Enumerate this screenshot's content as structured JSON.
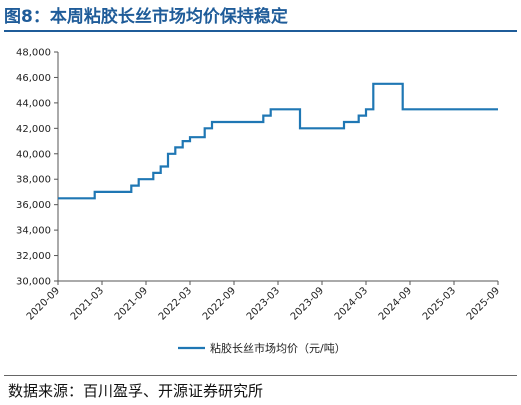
{
  "title": "图8：本周粘胶长丝市场均价保持稳定",
  "source": "数据来源：百川盈孚、开源证券研究所",
  "chart_data": {
    "type": "line",
    "title": "图8：本周粘胶长丝市场均价保持稳定",
    "xlabel": "",
    "ylabel": "",
    "xlim": [
      "2020-09",
      "2025-09"
    ],
    "ylim": [
      30000,
      48000
    ],
    "y_ticks": [
      30000,
      32000,
      34000,
      36000,
      38000,
      40000,
      42000,
      44000,
      46000,
      48000
    ],
    "y_tick_labels": [
      "30,000",
      "32,000",
      "34,000",
      "36,000",
      "38,000",
      "40,000",
      "42,000",
      "44,000",
      "46,000",
      "48,000"
    ],
    "x_tick_labels": [
      "2020-09",
      "2021-03",
      "2021-09",
      "2022-03",
      "2022-09",
      "2023-03",
      "2023-09",
      "2024-03",
      "2024-09",
      "2025-03",
      "2025-09"
    ],
    "grid": false,
    "legend_position": "bottom",
    "color": "#1f77b4",
    "series": [
      {
        "name": "粘胶长丝市场均价（元/吨）",
        "step": true,
        "points": [
          [
            "2020-09",
            36500
          ],
          [
            "2021-02",
            37000
          ],
          [
            "2021-07",
            37500
          ],
          [
            "2021-08",
            38000
          ],
          [
            "2021-10",
            38500
          ],
          [
            "2021-11",
            39000
          ],
          [
            "2021-12",
            40000
          ],
          [
            "2022-01",
            40500
          ],
          [
            "2022-02",
            41000
          ],
          [
            "2022-03",
            41300
          ],
          [
            "2022-05",
            42000
          ],
          [
            "2022-06",
            42500
          ],
          [
            "2023-01",
            43000
          ],
          [
            "2023-02",
            43500
          ],
          [
            "2023-06",
            42000
          ],
          [
            "2023-12",
            42500
          ],
          [
            "2024-02",
            43000
          ],
          [
            "2024-03",
            43500
          ],
          [
            "2024-04",
            45500
          ],
          [
            "2024-08",
            43500
          ],
          [
            "2025-09",
            43500
          ]
        ]
      }
    ]
  }
}
